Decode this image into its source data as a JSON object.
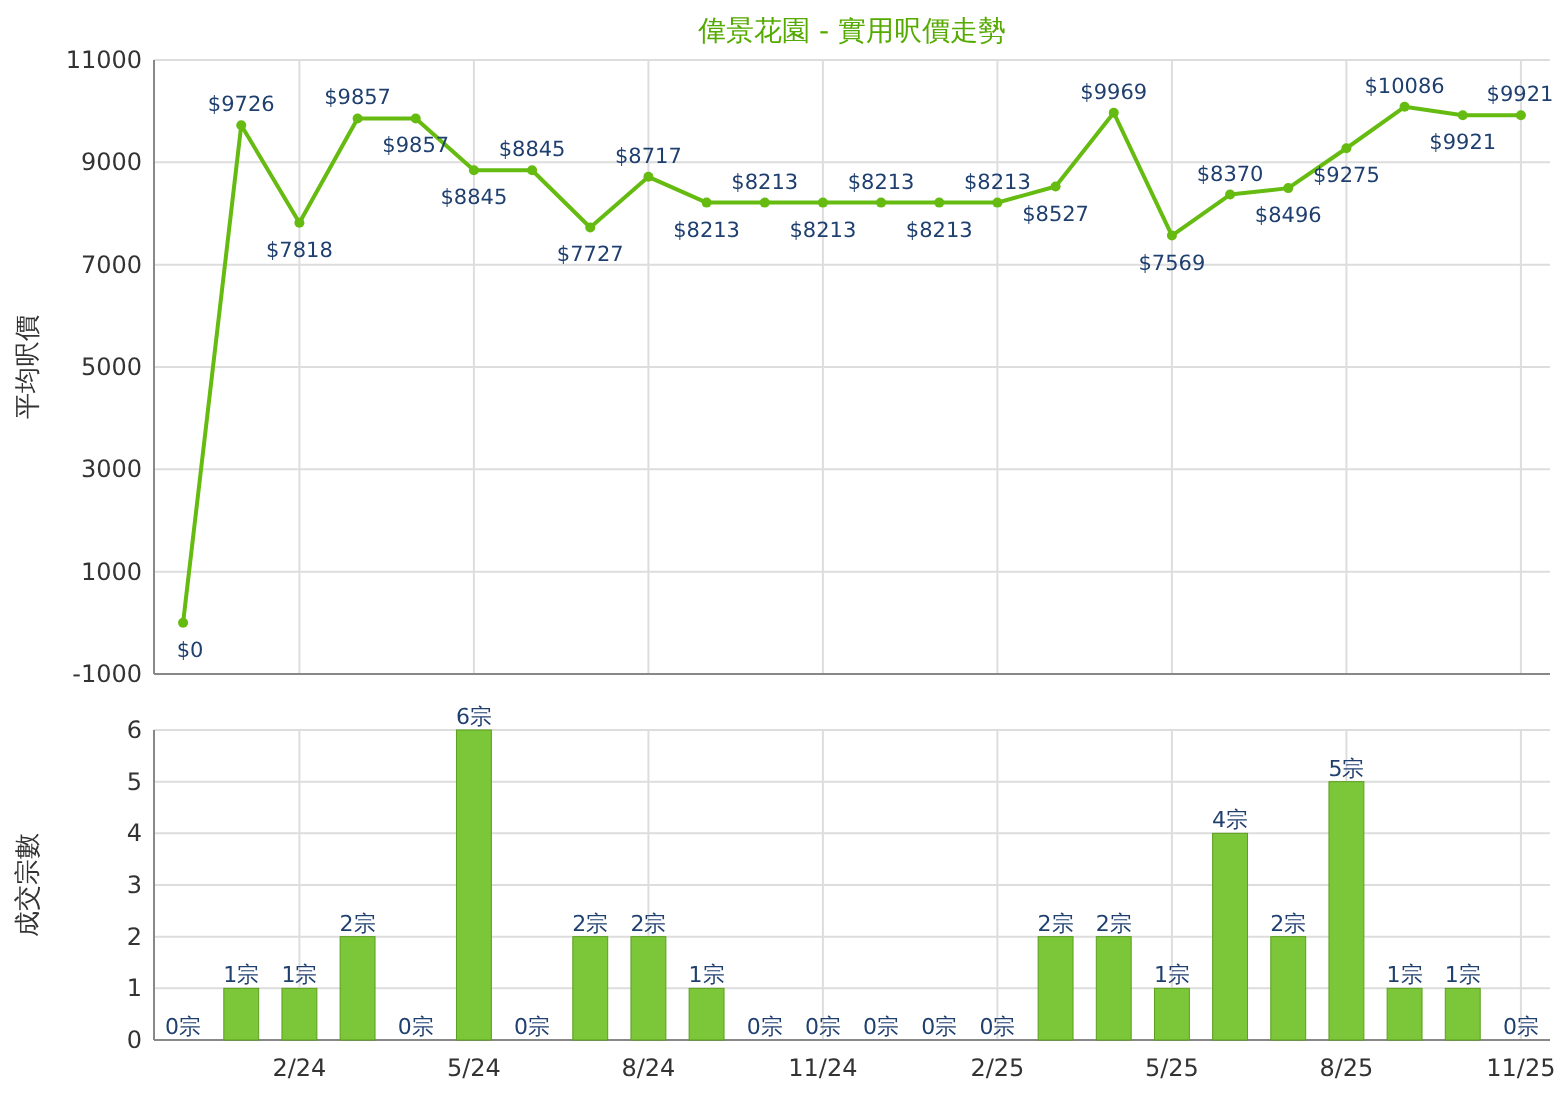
{
  "chart_data": [
    {
      "type": "line",
      "title": "偉景花園 - 實用呎價走勢",
      "ylabel": "平均呎價",
      "categories": [
        null,
        null,
        null,
        null,
        null,
        null,
        null,
        null,
        null,
        null,
        null,
        null,
        null,
        null,
        null,
        null,
        null,
        null,
        null,
        null,
        null,
        null,
        null,
        null
      ],
      "values": [
        0,
        9726,
        7818,
        9857,
        9857,
        8845,
        8845,
        7727,
        8717,
        8213,
        8213,
        8213,
        8213,
        8213,
        8213,
        8527,
        9969,
        7569,
        8370,
        8496,
        9275,
        10086,
        9921,
        9921
      ],
      "value_labels": [
        "$0",
        "$9726",
        "$7818",
        "$9857",
        "$9857",
        "$8845",
        "$8845",
        "$7727",
        "$8717",
        "$8213",
        "$8213",
        "$8213",
        "$8213",
        "$8213",
        "$8213",
        "$8527",
        "$9969",
        "$7569",
        "$8370",
        "$8496",
        "$9275",
        "$10086",
        "$9921",
        "$9921"
      ],
      "color": "#66bb11",
      "ylim": [
        -1000,
        11000
      ],
      "yticks": [
        -1000,
        1000,
        3000,
        5000,
        7000,
        9000,
        11000
      ],
      "grid": true,
      "marker": "circle",
      "tick_labels": "y"
    },
    {
      "type": "bar",
      "ylabel": "成交宗數",
      "categories": [
        null,
        null,
        "2/24",
        null,
        null,
        "5/24",
        null,
        null,
        "8/24",
        null,
        null,
        "11/24",
        null,
        null,
        "2/25",
        null,
        null,
        "5/25",
        null,
        null,
        "8/25",
        null,
        null,
        "11/25"
      ],
      "values": [
        0,
        1,
        1,
        2,
        0,
        6,
        0,
        2,
        2,
        1,
        0,
        0,
        0,
        0,
        0,
        2,
        2,
        1,
        4,
        2,
        5,
        1,
        1,
        0
      ],
      "value_labels": [
        "0宗",
        "1宗",
        "1宗",
        "2宗",
        "0宗",
        "6宗",
        "0宗",
        "2宗",
        "2宗",
        "1宗",
        "0宗",
        "0宗",
        "0宗",
        "0宗",
        "0宗",
        "2宗",
        "2宗",
        "1宗",
        "4宗",
        "2宗",
        "5宗",
        "1宗",
        "1宗",
        "0宗"
      ],
      "color": "#7cc63a",
      "ylim": [
        0,
        6
      ],
      "yticks": [
        0,
        1,
        2,
        3,
        4,
        5,
        6
      ],
      "grid": true
    }
  ]
}
